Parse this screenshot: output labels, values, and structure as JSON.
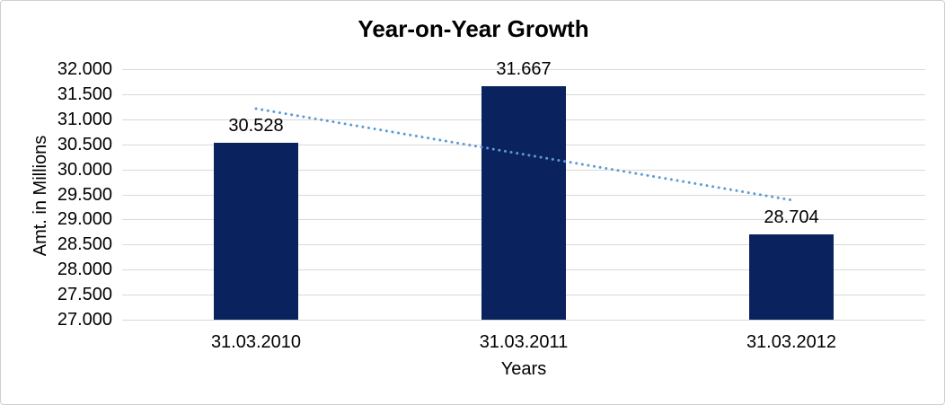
{
  "chart_data": {
    "type": "bar",
    "title": "Year-on-Year Growth",
    "xlabel": "Years",
    "ylabel": "Amt. in Millions",
    "categories": [
      "31.03.2010",
      "31.03.2011",
      "31.03.2012"
    ],
    "values": [
      30.528,
      31.667,
      28.704
    ],
    "value_labels": [
      "30.528",
      "31.667",
      "28.704"
    ],
    "ylim": [
      27.0,
      32.0
    ],
    "ytick_step": 0.5,
    "ytick_labels": [
      "32.000",
      "31.500",
      "31.000",
      "30.500",
      "30.000",
      "29.500",
      "29.000",
      "28.500",
      "28.000",
      "27.500",
      "27.000"
    ],
    "grid": true,
    "legend": "none",
    "bar_color": "#0A235F",
    "gridline_color": "#D9D9D9",
    "text_color": "#000000",
    "trendline": {
      "type": "linear",
      "style": "dotted",
      "color": "#5B9BD5",
      "start_value": 31.212,
      "end_value": 29.388
    }
  }
}
